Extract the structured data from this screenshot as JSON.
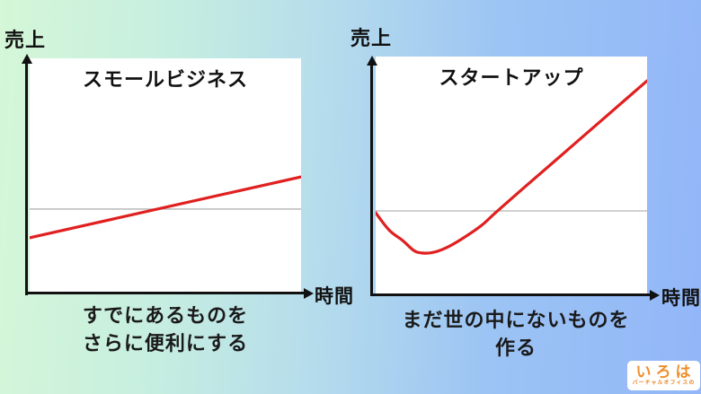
{
  "colors": {
    "curve_red": "#e02020",
    "axis_black": "#111111",
    "reference_gray": "#b3b3b3",
    "panel_white": "#ffffff",
    "background_green": "#d5f7d8",
    "background_blue": "#92b6f8",
    "logo_orange": "#ee8f2c"
  },
  "charts": [
    {
      "title": "スモールビジネス",
      "y_axis_label": "売上",
      "x_axis_label": "時間",
      "caption_lines": [
        "すでにあるものを",
        "さらに便利にする"
      ]
    },
    {
      "title": "スタートアップ",
      "y_axis_label": "売上",
      "x_axis_label": "時間",
      "caption_lines": [
        "まだ世の中にないものを",
        "作る"
      ]
    }
  ],
  "logo": {
    "text": "いろは",
    "subtext": "バーチャルオフィスの"
  },
  "chart_data": [
    {
      "type": "line",
      "title": "スモールビジネス",
      "xlabel": "時間",
      "ylabel": "売上",
      "axis_ticks": "none (conceptual chart, unlabeled axes)",
      "caption": "すでにあるものを さらに便利にする",
      "shape": "straight, gently rising revenue line",
      "reference_line_y_normalized": 0.359,
      "series": [
        {
          "name": "売上カーブ",
          "color": "#e02020",
          "points_normalized": [
            [
              0,
              0.237
            ],
            [
              1,
              0.496
            ]
          ]
        }
      ]
    },
    {
      "type": "line",
      "title": "スタートアップ",
      "xlabel": "時間",
      "ylabel": "売上",
      "axis_ticks": "none (conceptual chart, unlabeled axes)",
      "caption": "まだ世の中にないものを 作る",
      "shape": "J-curve: dips below start, then rises steeply",
      "reference_line_y_normalized": 0.351,
      "series": [
        {
          "name": "売上カーブ",
          "color": "#e02020",
          "points_normalized": [
            [
              0,
              0.343
            ],
            [
              0.05,
              0.27
            ],
            [
              0.1,
              0.226
            ],
            [
              0.14,
              0.185
            ],
            [
              0.17,
              0.174
            ],
            [
              0.21,
              0.176
            ],
            [
              0.26,
              0.196
            ],
            [
              0.32,
              0.235
            ],
            [
              0.39,
              0.29
            ],
            [
              0.445,
              0.347
            ],
            [
              0.55,
              0.452
            ],
            [
              0.65,
              0.551
            ],
            [
              0.76,
              0.66
            ],
            [
              0.88,
              0.779
            ],
            [
              1.0,
              0.898
            ]
          ]
        }
      ]
    }
  ]
}
